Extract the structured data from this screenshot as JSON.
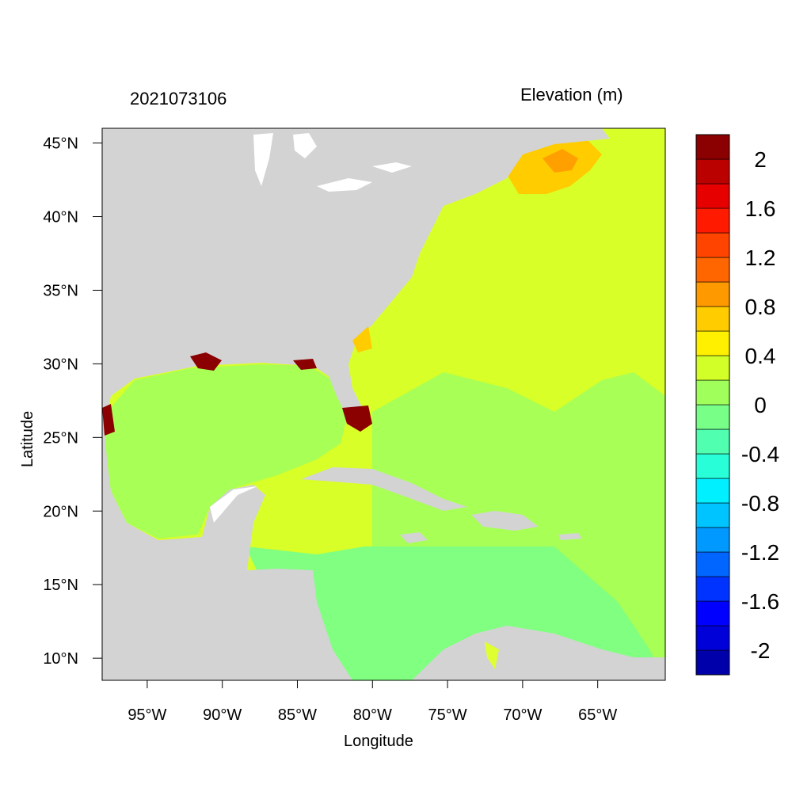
{
  "map": {
    "title_left": "2021073106",
    "title_right": "Elevation (m)",
    "xlabel": "Longitude",
    "ylabel": "Latitude",
    "lon_range": [
      -98,
      -60.5
    ],
    "lat_range": [
      8.5,
      46
    ],
    "land_color": "#d3d3d3",
    "lon_ticks": [
      {
        "value": -95,
        "label": "95°W"
      },
      {
        "value": -90,
        "label": "90°W"
      },
      {
        "value": -85,
        "label": "85°W"
      },
      {
        "value": -80,
        "label": "80°W"
      },
      {
        "value": -75,
        "label": "75°W"
      },
      {
        "value": -70,
        "label": "70°W"
      },
      {
        "value": -65,
        "label": "65°W"
      }
    ],
    "lat_ticks": [
      {
        "value": 45,
        "label": "45°N"
      },
      {
        "value": 40,
        "label": "40°N"
      },
      {
        "value": 35,
        "label": "35°N"
      },
      {
        "value": 30,
        "label": "30°N"
      },
      {
        "value": 25,
        "label": "25°N"
      },
      {
        "value": 20,
        "label": "20°N"
      },
      {
        "value": 15,
        "label": "15°N"
      },
      {
        "value": 10,
        "label": "10°N"
      }
    ]
  },
  "colorbar": {
    "levels": [
      -2.2,
      -2.0,
      -1.8,
      -1.6,
      -1.4,
      -1.2,
      -1.0,
      -0.8,
      -0.6,
      -0.4,
      -0.2,
      0.0,
      0.2,
      0.4,
      0.6,
      0.8,
      1.0,
      1.2,
      1.4,
      1.6,
      1.8,
      2.0,
      2.2
    ],
    "colors": [
      "#0000aa",
      "#0000d8",
      "#0000ff",
      "#0033ff",
      "#0066ff",
      "#0099ff",
      "#00c4ff",
      "#00f0ff",
      "#28ffd8",
      "#50ffb0",
      "#78ff88",
      "#a0ff5a",
      "#d2ff28",
      "#fff000",
      "#ffcc00",
      "#ff9900",
      "#ff6600",
      "#ff4400",
      "#ff1a00",
      "#e60000",
      "#bb0000",
      "#8b0000"
    ],
    "tick_labels": [
      {
        "value": -2.0,
        "label": "-2"
      },
      {
        "value": -1.6,
        "label": "-1.6"
      },
      {
        "value": -1.2,
        "label": "-1.2"
      },
      {
        "value": -0.8,
        "label": "-0.8"
      },
      {
        "value": -0.4,
        "label": "-0.4"
      },
      {
        "value": 0.0,
        "label": "0"
      },
      {
        "value": 0.4,
        "label": "0.4"
      },
      {
        "value": 0.8,
        "label": "0.8"
      },
      {
        "value": 1.2,
        "label": "1.2"
      },
      {
        "value": 1.6,
        "label": "1.6"
      },
      {
        "value": 2.0,
        "label": "2"
      }
    ]
  }
}
